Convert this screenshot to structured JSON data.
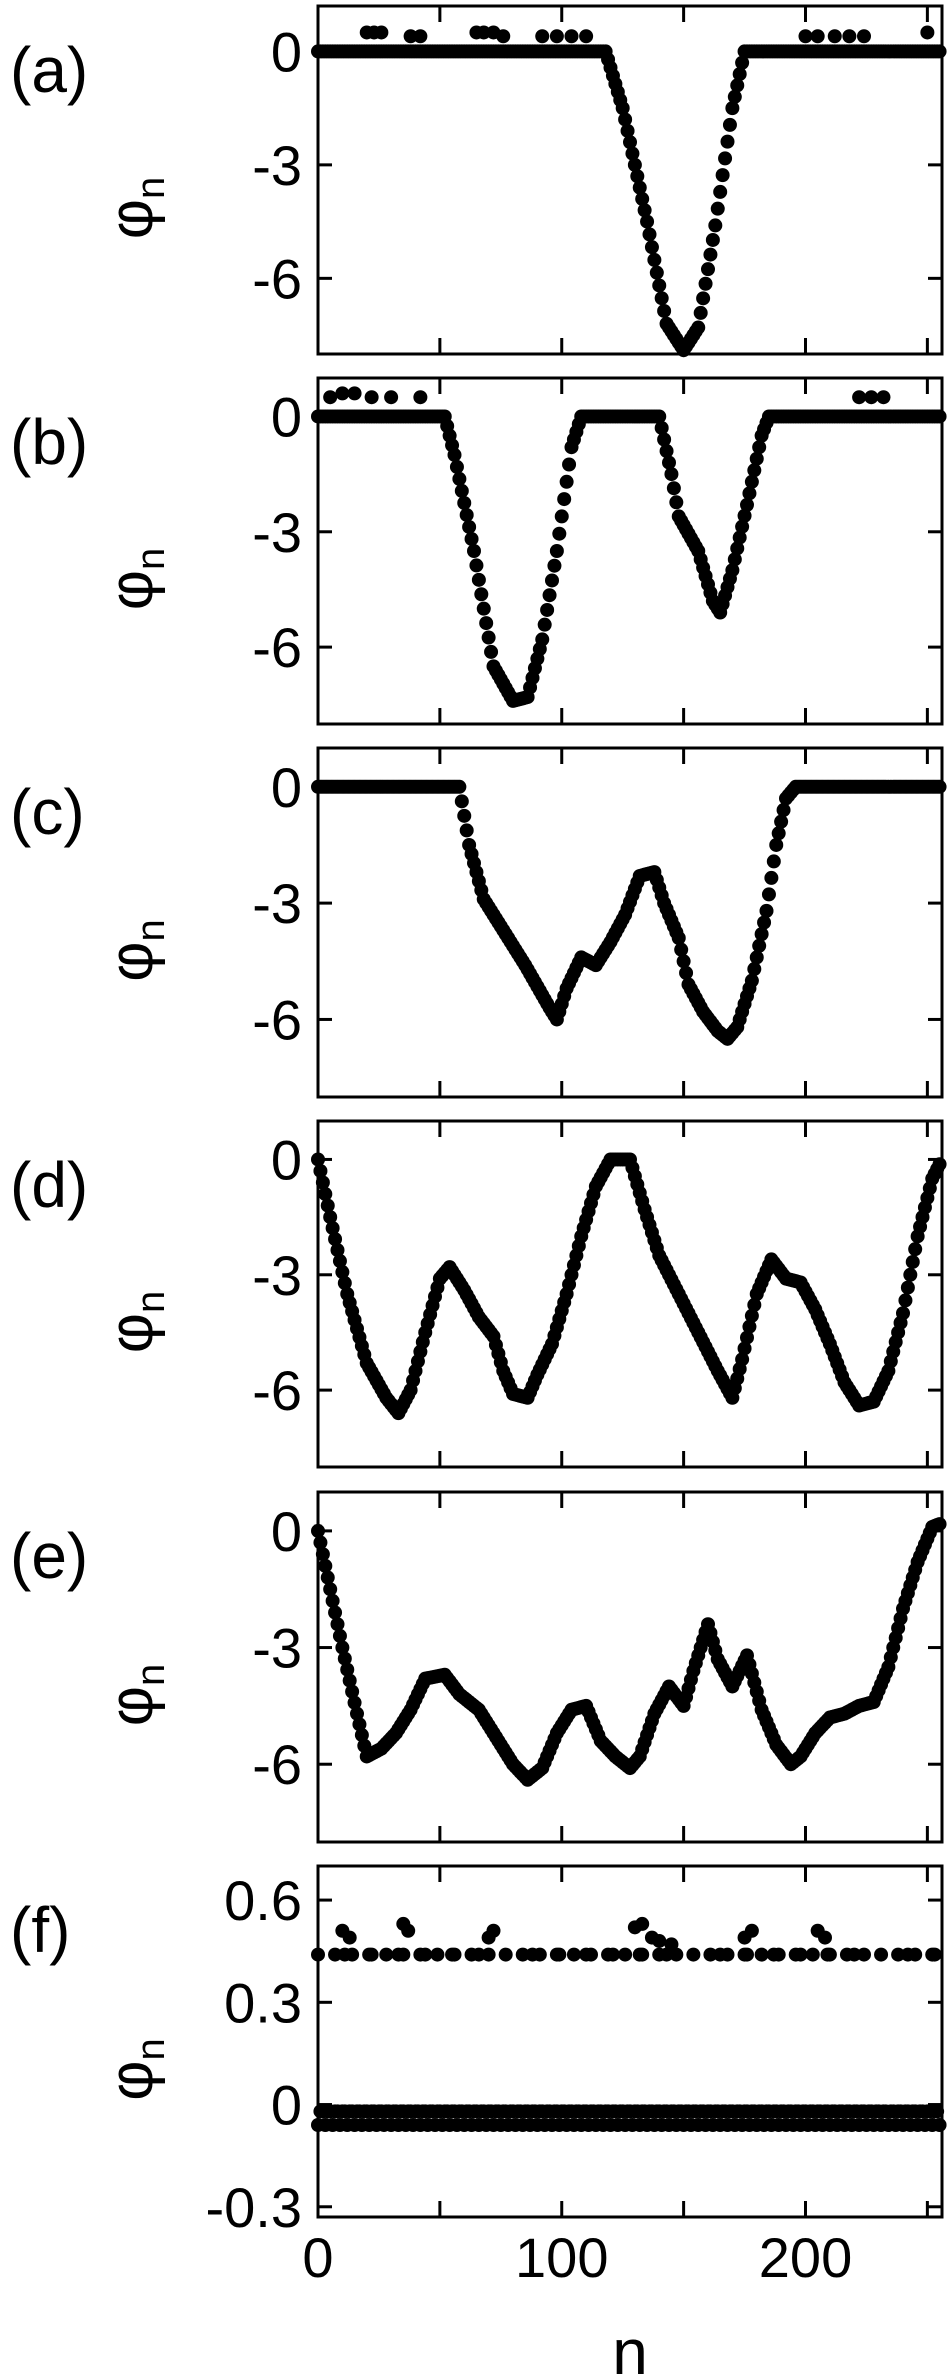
{
  "figure": {
    "xlabel": "n"
  },
  "chart_data": [
    {
      "type": "scatter",
      "panel_label": "(a)",
      "ylabel": "φ",
      "ylabel_sub": "n",
      "xlim": [
        0,
        256
      ],
      "ylim": [
        -8,
        1.2
      ],
      "yticks": [
        0,
        -3,
        -6
      ],
      "yticklabels": [
        "0",
        "-3",
        "-6"
      ],
      "xticks": [
        0,
        50,
        100,
        150,
        200,
        250
      ],
      "xticklabels": [
        "",
        "",
        "",
        "",
        "",
        ""
      ],
      "baseline_pattern": "oscillating_small",
      "segments": [
        [
          0,
          0
        ],
        [
          118,
          0
        ],
        [
          125,
          -1.5
        ],
        [
          135,
          -4.5
        ],
        [
          143,
          -7.2
        ],
        [
          150,
          -7.9
        ],
        [
          156,
          -7.3
        ],
        [
          163,
          -4.6
        ],
        [
          170,
          -1.5
        ],
        [
          175,
          0
        ],
        [
          256,
          0
        ]
      ],
      "extra_points": [
        [
          20,
          0.5
        ],
        [
          23,
          0.5
        ],
        [
          26,
          0.5
        ],
        [
          38,
          0.4
        ],
        [
          42,
          0.4
        ],
        [
          65,
          0.5
        ],
        [
          68,
          0.5
        ],
        [
          72,
          0.5
        ],
        [
          76,
          0.4
        ],
        [
          92,
          0.4
        ],
        [
          98,
          0.4
        ],
        [
          104,
          0.4
        ],
        [
          110,
          0.4
        ],
        [
          200,
          0.4
        ],
        [
          205,
          0.4
        ],
        [
          212,
          0.4
        ],
        [
          218,
          0.4
        ],
        [
          224,
          0.4
        ],
        [
          250,
          0.5
        ]
      ]
    },
    {
      "type": "scatter",
      "panel_label": "(b)",
      "ylabel": "φ",
      "ylabel_sub": "n",
      "xlim": [
        0,
        256
      ],
      "ylim": [
        -8,
        1.0
      ],
      "yticks": [
        0,
        -3,
        -6
      ],
      "yticklabels": [
        "0",
        "-3",
        "-6"
      ],
      "xticks": [
        0,
        50,
        100,
        150,
        200,
        250
      ],
      "xticklabels": [
        "",
        "",
        "",
        "",
        "",
        ""
      ],
      "baseline_pattern": "oscillating_small",
      "segments": [
        [
          0,
          0
        ],
        [
          52,
          0
        ],
        [
          56,
          -1
        ],
        [
          64,
          -3.5
        ],
        [
          72,
          -6.5
        ],
        [
          80,
          -7.4
        ],
        [
          86,
          -7.3
        ],
        [
          92,
          -5.8
        ],
        [
          98,
          -3.5
        ],
        [
          104,
          -0.8
        ],
        [
          108,
          0
        ],
        [
          140,
          0
        ],
        [
          145,
          -1.5
        ],
        [
          148,
          -2.6
        ],
        [
          156,
          -3.5
        ],
        [
          162,
          -4.8
        ],
        [
          165,
          -5.1
        ],
        [
          170,
          -4
        ],
        [
          176,
          -2.3
        ],
        [
          182,
          -0.5
        ],
        [
          185,
          0
        ],
        [
          256,
          0
        ]
      ],
      "extra_points": [
        [
          5,
          0.5
        ],
        [
          10,
          0.6
        ],
        [
          15,
          0.6
        ],
        [
          22,
          0.5
        ],
        [
          30,
          0.5
        ],
        [
          42,
          0.5
        ],
        [
          222,
          0.5
        ],
        [
          227,
          0.5
        ],
        [
          232,
          0.5
        ]
      ]
    },
    {
      "type": "scatter",
      "panel_label": "(c)",
      "ylabel": "φ",
      "ylabel_sub": "n",
      "xlim": [
        0,
        256
      ],
      "ylim": [
        -8,
        1.0
      ],
      "yticks": [
        0,
        -3,
        -6
      ],
      "yticklabels": [
        "0",
        "-3",
        "-6"
      ],
      "xticks": [
        0,
        50,
        100,
        150,
        200,
        250
      ],
      "xticklabels": [
        "",
        "",
        "",
        "",
        "",
        ""
      ],
      "baseline_pattern": "flat",
      "segments": [
        [
          0,
          0
        ],
        [
          58,
          0
        ],
        [
          62,
          -1.5
        ],
        [
          68,
          -2.9
        ],
        [
          75,
          -3.6
        ],
        [
          85,
          -4.6
        ],
        [
          95,
          -5.7
        ],
        [
          98,
          -6
        ],
        [
          102,
          -5.2
        ],
        [
          108,
          -4.4
        ],
        [
          114,
          -4.6
        ],
        [
          120,
          -4
        ],
        [
          126,
          -3.3
        ],
        [
          132,
          -2.3
        ],
        [
          138,
          -2.2
        ],
        [
          142,
          -3
        ],
        [
          148,
          -3.9
        ],
        [
          152,
          -5.1
        ],
        [
          158,
          -5.8
        ],
        [
          164,
          -6.3
        ],
        [
          168,
          -6.5
        ],
        [
          172,
          -6.2
        ],
        [
          178,
          -5
        ],
        [
          184,
          -3.2
        ],
        [
          188,
          -1.5
        ],
        [
          192,
          -0.3
        ],
        [
          196,
          0
        ],
        [
          256,
          0
        ]
      ],
      "extra_points": []
    },
    {
      "type": "scatter",
      "panel_label": "(d)",
      "ylabel": "φ",
      "ylabel_sub": "n",
      "xlim": [
        0,
        256
      ],
      "ylim": [
        -8,
        1.0
      ],
      "yticks": [
        0,
        -3,
        -6
      ],
      "yticklabels": [
        "0",
        "-3",
        "-6"
      ],
      "xticks": [
        0,
        50,
        100,
        150,
        200,
        250
      ],
      "xticklabels": [
        "",
        "",
        "",
        "",
        "",
        ""
      ],
      "baseline_pattern": "none",
      "segments": [
        [
          0,
          0
        ],
        [
          5,
          -1.5
        ],
        [
          12,
          -3.5
        ],
        [
          20,
          -5.3
        ],
        [
          28,
          -6.2
        ],
        [
          33,
          -6.6
        ],
        [
          38,
          -6
        ],
        [
          44,
          -4.5
        ],
        [
          50,
          -3.1
        ],
        [
          54,
          -2.8
        ],
        [
          60,
          -3.4
        ],
        [
          66,
          -4.1
        ],
        [
          72,
          -4.6
        ],
        [
          76,
          -5.5
        ],
        [
          80,
          -6.1
        ],
        [
          86,
          -6.2
        ],
        [
          90,
          -5.6
        ],
        [
          96,
          -4.8
        ],
        [
          102,
          -3.5
        ],
        [
          108,
          -2
        ],
        [
          114,
          -0.7
        ],
        [
          120,
          0
        ],
        [
          128,
          0
        ],
        [
          134,
          -1.3
        ],
        [
          140,
          -2.5
        ],
        [
          148,
          -3.5
        ],
        [
          156,
          -4.5
        ],
        [
          164,
          -5.5
        ],
        [
          170,
          -6.2
        ],
        [
          174,
          -5.2
        ],
        [
          180,
          -3.5
        ],
        [
          186,
          -2.6
        ],
        [
          192,
          -3.1
        ],
        [
          198,
          -3.2
        ],
        [
          204,
          -3.9
        ],
        [
          210,
          -4.8
        ],
        [
          216,
          -5.8
        ],
        [
          222,
          -6.4
        ],
        [
          228,
          -6.3
        ],
        [
          234,
          -5.5
        ],
        [
          240,
          -4
        ],
        [
          246,
          -2
        ],
        [
          252,
          -0.5
        ],
        [
          256,
          0
        ]
      ],
      "extra_points": []
    },
    {
      "type": "scatter",
      "panel_label": "(e)",
      "ylabel": "φ",
      "ylabel_sub": "n",
      "xlim": [
        0,
        256
      ],
      "ylim": [
        -8,
        1.0
      ],
      "yticks": [
        0,
        -3,
        -6
      ],
      "yticklabels": [
        "0",
        "-3",
        "-6"
      ],
      "xticks": [
        0,
        50,
        100,
        150,
        200,
        250
      ],
      "xticklabels": [
        "",
        "",
        "",
        "",
        "",
        ""
      ],
      "baseline_pattern": "none",
      "segments": [
        [
          0,
          0
        ],
        [
          5,
          -1.5
        ],
        [
          10,
          -3
        ],
        [
          16,
          -4.7
        ],
        [
          20,
          -5.8
        ],
        [
          26,
          -5.6
        ],
        [
          32,
          -5.2
        ],
        [
          38,
          -4.6
        ],
        [
          44,
          -3.8
        ],
        [
          52,
          -3.7
        ],
        [
          58,
          -4.2
        ],
        [
          66,
          -4.6
        ],
        [
          72,
          -5.2
        ],
        [
          80,
          -6
        ],
        [
          86,
          -6.4
        ],
        [
          92,
          -6.1
        ],
        [
          98,
          -5.2
        ],
        [
          104,
          -4.6
        ],
        [
          110,
          -4.5
        ],
        [
          116,
          -5.4
        ],
        [
          122,
          -5.8
        ],
        [
          128,
          -6.1
        ],
        [
          132,
          -5.8
        ],
        [
          138,
          -4.7
        ],
        [
          144,
          -4
        ],
        [
          150,
          -4.5
        ],
        [
          154,
          -3.6
        ],
        [
          160,
          -2.4
        ],
        [
          164,
          -3.3
        ],
        [
          170,
          -4
        ],
        [
          176,
          -3.2
        ],
        [
          182,
          -4.6
        ],
        [
          188,
          -5.5
        ],
        [
          194,
          -6
        ],
        [
          198,
          -5.8
        ],
        [
          204,
          -5.2
        ],
        [
          210,
          -4.8
        ],
        [
          216,
          -4.7
        ],
        [
          222,
          -4.5
        ],
        [
          228,
          -4.4
        ],
        [
          234,
          -3.5
        ],
        [
          240,
          -2
        ],
        [
          246,
          -0.8
        ],
        [
          252,
          0.1
        ],
        [
          256,
          0.2
        ]
      ],
      "extra_points": []
    },
    {
      "type": "scatter",
      "panel_label": "(f)",
      "ylabel": "φ",
      "ylabel_sub": "n",
      "xlim": [
        0,
        256
      ],
      "ylim": [
        -0.33,
        0.7
      ],
      "yticks": [
        0.6,
        0.3,
        0,
        -0.3
      ],
      "yticklabels": [
        "0.6",
        "0.3",
        "0",
        "-0.3"
      ],
      "xticks": [
        0,
        50,
        100,
        150,
        200,
        250
      ],
      "xticklabels": [
        "0",
        "",
        "100",
        "",
        "200",
        ""
      ],
      "baseline_pattern": "two_bands",
      "segments": [],
      "extra_points": [
        [
          10,
          0.51
        ],
        [
          13,
          0.49
        ],
        [
          35,
          0.53
        ],
        [
          37,
          0.51
        ],
        [
          70,
          0.49
        ],
        [
          72,
          0.51
        ],
        [
          130,
          0.52
        ],
        [
          133,
          0.53
        ],
        [
          137,
          0.49
        ],
        [
          140,
          0.48
        ],
        [
          145,
          0.47
        ],
        [
          175,
          0.49
        ],
        [
          178,
          0.51
        ],
        [
          205,
          0.51
        ],
        [
          208,
          0.49
        ]
      ]
    }
  ]
}
